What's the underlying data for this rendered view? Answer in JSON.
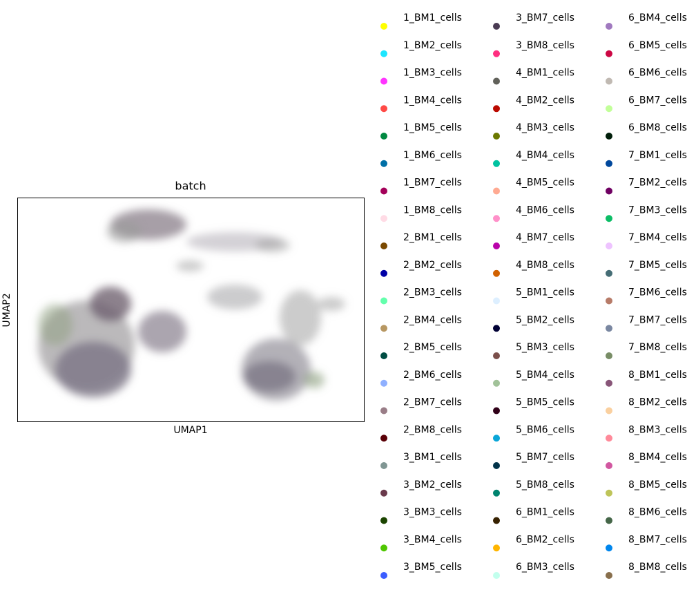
{
  "chart_data": {
    "type": "scatter",
    "title": "batch",
    "x_label": "UMAP1",
    "y_label": "UMAP2",
    "series": [
      {
        "name": "1_BM1_cells",
        "color": "#ffff00"
      },
      {
        "name": "1_BM2_cells",
        "color": "#1ce6ff"
      },
      {
        "name": "1_BM3_cells",
        "color": "#ff34ff"
      },
      {
        "name": "1_BM4_cells",
        "color": "#ff4a46"
      },
      {
        "name": "1_BM5_cells",
        "color": "#008941"
      },
      {
        "name": "1_BM6_cells",
        "color": "#006fa6"
      },
      {
        "name": "1_BM7_cells",
        "color": "#a30059"
      },
      {
        "name": "1_BM8_cells",
        "color": "#ffdbe5"
      },
      {
        "name": "2_BM1_cells",
        "color": "#7a4900"
      },
      {
        "name": "2_BM2_cells",
        "color": "#0000a6"
      },
      {
        "name": "2_BM3_cells",
        "color": "#63ffac"
      },
      {
        "name": "2_BM4_cells",
        "color": "#b79762"
      },
      {
        "name": "2_BM5_cells",
        "color": "#004d43"
      },
      {
        "name": "2_BM6_cells",
        "color": "#8fb0ff"
      },
      {
        "name": "2_BM7_cells",
        "color": "#997d87"
      },
      {
        "name": "2_BM8_cells",
        "color": "#5a0007"
      },
      {
        "name": "3_BM1_cells",
        "color": "#809693"
      },
      {
        "name": "3_BM2_cells",
        "color": "#6a3a4c"
      },
      {
        "name": "3_BM3_cells",
        "color": "#1b4400"
      },
      {
        "name": "3_BM4_cells",
        "color": "#4fc601"
      },
      {
        "name": "3_BM5_cells",
        "color": "#3b5dff"
      },
      {
        "name": "3_BM7_cells",
        "color": "#4a3b53"
      },
      {
        "name": "3_BM8_cells",
        "color": "#ff2f80"
      },
      {
        "name": "4_BM1_cells",
        "color": "#61615a"
      },
      {
        "name": "4_BM2_cells",
        "color": "#ba0900"
      },
      {
        "name": "4_BM3_cells",
        "color": "#6b7900"
      },
      {
        "name": "4_BM4_cells",
        "color": "#00c2a0"
      },
      {
        "name": "4_BM5_cells",
        "color": "#ffaa92"
      },
      {
        "name": "4_BM6_cells",
        "color": "#ff90c9"
      },
      {
        "name": "4_BM7_cells",
        "color": "#b903aa"
      },
      {
        "name": "4_BM8_cells",
        "color": "#d16100"
      },
      {
        "name": "5_BM1_cells",
        "color": "#ddefff"
      },
      {
        "name": "5_BM2_cells",
        "color": "#000035"
      },
      {
        "name": "5_BM3_cells",
        "color": "#7b4f4b"
      },
      {
        "name": "5_BM4_cells",
        "color": "#a1c299"
      },
      {
        "name": "5_BM5_cells",
        "color": "#300018"
      },
      {
        "name": "5_BM6_cells",
        "color": "#0aa6d8"
      },
      {
        "name": "5_BM7_cells",
        "color": "#013349"
      },
      {
        "name": "5_BM8_cells",
        "color": "#00846f"
      },
      {
        "name": "6_BM1_cells",
        "color": "#372101"
      },
      {
        "name": "6_BM2_cells",
        "color": "#ffb500"
      },
      {
        "name": "6_BM3_cells",
        "color": "#c2ffed"
      },
      {
        "name": "6_BM4_cells",
        "color": "#a079bf"
      },
      {
        "name": "6_BM5_cells",
        "color": "#cc0744"
      },
      {
        "name": "6_BM6_cells",
        "color": "#c0b9b2"
      },
      {
        "name": "6_BM7_cells",
        "color": "#c2ff99"
      },
      {
        "name": "6_BM8_cells",
        "color": "#001e09"
      },
      {
        "name": "7_BM1_cells",
        "color": "#00489c"
      },
      {
        "name": "7_BM2_cells",
        "color": "#6f0062"
      },
      {
        "name": "7_BM3_cells",
        "color": "#0cbd66"
      },
      {
        "name": "7_BM4_cells",
        "color": "#eec3ff"
      },
      {
        "name": "7_BM5_cells",
        "color": "#456d75"
      },
      {
        "name": "7_BM6_cells",
        "color": "#b77b68"
      },
      {
        "name": "7_BM7_cells",
        "color": "#7a87a1"
      },
      {
        "name": "7_BM8_cells",
        "color": "#788d66"
      },
      {
        "name": "8_BM1_cells",
        "color": "#885578"
      },
      {
        "name": "8_BM2_cells",
        "color": "#fad09f"
      },
      {
        "name": "8_BM3_cells",
        "color": "#ff8a9a"
      },
      {
        "name": "8_BM4_cells",
        "color": "#d157a0"
      },
      {
        "name": "8_BM5_cells",
        "color": "#bec459"
      },
      {
        "name": "8_BM6_cells",
        "color": "#456648"
      },
      {
        "name": "8_BM7_cells",
        "color": "#0086ed"
      },
      {
        "name": "8_BM8_cells",
        "color": "#886f4c"
      }
    ]
  }
}
